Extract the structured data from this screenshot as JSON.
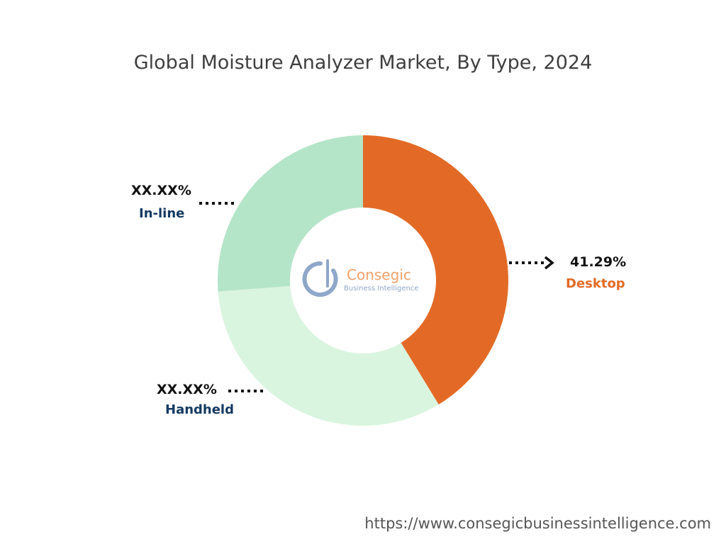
{
  "chart_data": {
    "type": "pie",
    "title": "Global Moisture Analyzer Market, By Type, 2024",
    "slices": [
      {
        "label": "Desktop",
        "value": 41.29,
        "value_text": "41.29%",
        "color": "#e36a26",
        "label_color": "#e36a26"
      },
      {
        "label": "Handheld",
        "value": 32.5,
        "value_text": "XX.XX%",
        "color": "#daf5df",
        "label_color": "#143a63"
      },
      {
        "label": "In-line",
        "value": 26.21,
        "value_text": "XX.XX%",
        "color": "#b5e5c8",
        "label_color": "#143a63"
      }
    ]
  },
  "logo": {
    "line1": "Consegic",
    "line2": "Business Intelligence",
    "accent_color": "#f2a06a",
    "secondary_color": "#8fa7c9"
  },
  "footer": {
    "url": "https://www.consegicbusinessintelligence.com"
  }
}
